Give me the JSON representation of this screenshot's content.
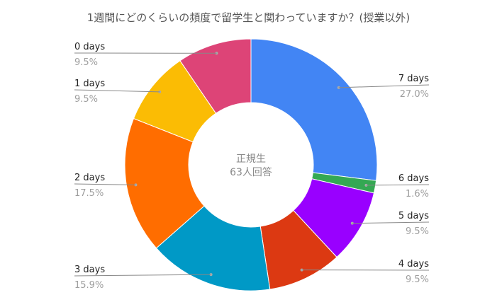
{
  "chart_data": {
    "type": "pie",
    "variant": "donut",
    "title": "1週間にどのくらいの頻度で留学生と関わっていますか？(授業以外)",
    "center_text": [
      "正規生",
      "63人回答"
    ],
    "slices": [
      {
        "label": "7 days",
        "value": 27.0,
        "percent": "27.0%",
        "color": "#4285F4"
      },
      {
        "label": "6 days",
        "value": 1.6,
        "percent": "1.6%",
        "color": "#34A853"
      },
      {
        "label": "5 days",
        "value": 9.5,
        "percent": "9.5%",
        "color": "#9900FF"
      },
      {
        "label": "4 days",
        "value": 9.5,
        "percent": "9.5%",
        "color": "#DC3912"
      },
      {
        "label": "3 days",
        "value": 15.9,
        "percent": "15.9%",
        "color": "#0099C6"
      },
      {
        "label": "2 days",
        "value": 17.5,
        "percent": "17.5%",
        "color": "#FF6D00"
      },
      {
        "label": "1 days",
        "value": 9.5,
        "percent": "9.5%",
        "color": "#FBBC04"
      },
      {
        "label": "0 days",
        "value": 9.5,
        "percent": "9.5%",
        "color": "#DD4477"
      }
    ]
  }
}
